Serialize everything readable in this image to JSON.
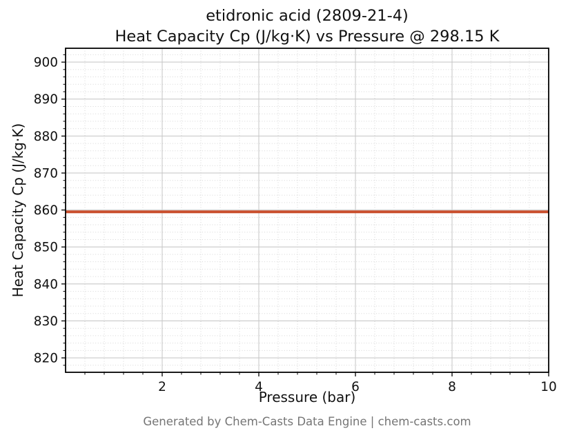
{
  "title": {
    "line1": "etidronic acid (2809-21-4)",
    "line2": "Heat Capacity Cp (J/kg·K) vs Pressure @ 298.15 K"
  },
  "chart_data": {
    "type": "line",
    "title": "etidronic acid (2809-21-4) — Heat Capacity Cp (J/kg·K) vs Pressure @ 298.15 K",
    "xlabel": "Pressure (bar)",
    "ylabel": "Heat Capacity Cp (J/kg·K)",
    "xlim": [
      0,
      10
    ],
    "ylim": [
      816.1,
      903.75
    ],
    "x_ticks": [
      2,
      4,
      6,
      8,
      10
    ],
    "y_ticks": [
      820,
      830,
      840,
      850,
      860,
      870,
      880,
      890,
      900
    ],
    "x_minor_step": 0.4,
    "y_minor_step": 2,
    "grid": "major-solid, minor-dotted",
    "legend": "none",
    "series": [
      {
        "name": "Heat Capacity Cp",
        "color": "#c94f2d",
        "x": [
          0,
          10
        ],
        "y": [
          859.5,
          859.5
        ]
      }
    ]
  },
  "footer": {
    "text": "Generated by Chem-Casts Data Engine | chem-casts.com"
  }
}
